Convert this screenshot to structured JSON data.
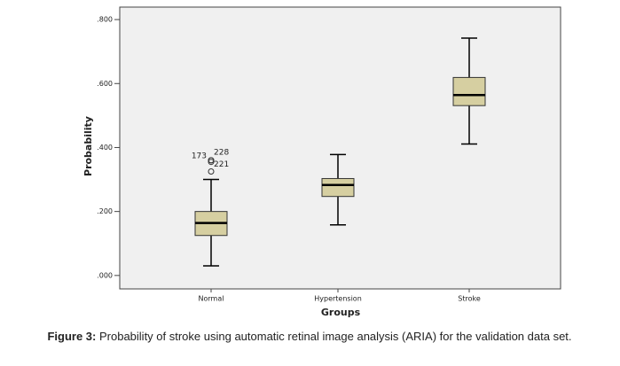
{
  "chart_data": {
    "type": "box",
    "categories": [
      "Normal",
      "Hypertension",
      "Stroke"
    ],
    "low": [
      0.03,
      0.158,
      0.411
    ],
    "q1": [
      0.125,
      0.247,
      0.531
    ],
    "median": [
      0.164,
      0.283,
      0.564
    ],
    "q3": [
      0.2,
      0.303,
      0.619
    ],
    "high": [
      0.3,
      0.378,
      0.742
    ],
    "outliers": [
      [
        0.325,
        0.36,
        0.36,
        0.355
      ],
      [],
      []
    ],
    "outlier_labels": [
      [
        null,
        "173",
        "228",
        "221"
      ],
      [],
      []
    ],
    "color": "#d6cfa1",
    "ylim": [
      -0.042,
      0.839
    ],
    "yticks": [
      {
        "value": 0,
        "label": ".000"
      },
      {
        "value": 0.2,
        "label": ".200"
      },
      {
        "value": 0.4,
        "label": ".400"
      },
      {
        "value": 0.6,
        "label": ".600"
      },
      {
        "value": 0.8,
        "label": ".800"
      }
    ],
    "xlabel": "Groups",
    "ylabel": "Probability",
    "caption_label": "Figure 3:",
    "caption": "Probability of stroke using automatic retinal image analysis (ARIA) for the validation data set."
  }
}
